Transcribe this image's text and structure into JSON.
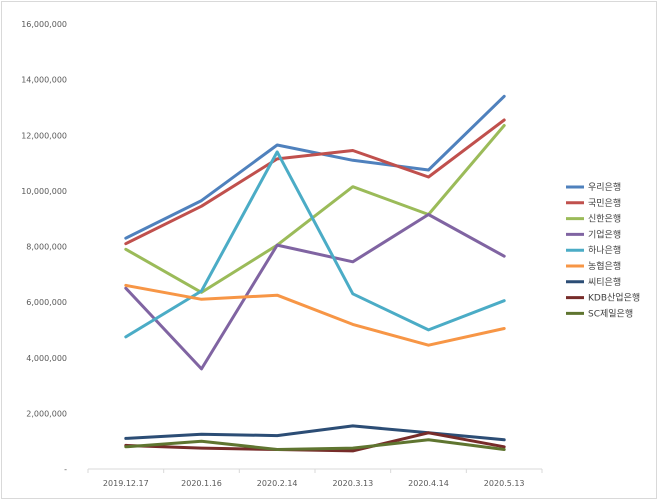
{
  "chart_data": {
    "type": "line",
    "title": "",
    "xlabel": "",
    "ylabel": "",
    "ylim": [
      0,
      16000000
    ],
    "yticks": [
      0,
      2000000,
      4000000,
      6000000,
      8000000,
      10000000,
      12000000,
      14000000,
      16000000
    ],
    "ytick_labels": [
      "-",
      "2,000,000",
      "4,000,000",
      "6,000,000",
      "8,000,000",
      "10,000,000",
      "12,000,000",
      "14,000,000",
      "16,000,000"
    ],
    "categories": [
      "2019.12.17",
      "2020.1.16",
      "2020.2.14",
      "2020.3.13",
      "2020.4.14",
      "2020.5.13"
    ],
    "grid": false,
    "legend_position": "right",
    "series": [
      {
        "name": "우리은행",
        "color": "#4f81bd",
        "values": [
          8300000,
          9650000,
          11650000,
          11100000,
          10750000,
          13400000
        ]
      },
      {
        "name": "국민은행",
        "color": "#c0504d",
        "values": [
          8100000,
          9450000,
          11150000,
          11450000,
          10500000,
          12550000
        ]
      },
      {
        "name": "신한은행",
        "color": "#9bbb59",
        "values": [
          7900000,
          6350000,
          8050000,
          10150000,
          9150000,
          12350000
        ]
      },
      {
        "name": "기업은행",
        "color": "#8064a2",
        "values": [
          6500000,
          3600000,
          8050000,
          7450000,
          9150000,
          7650000
        ]
      },
      {
        "name": "하나은행",
        "color": "#4bacc6",
        "values": [
          4750000,
          6400000,
          11400000,
          6300000,
          5000000,
          6050000
        ]
      },
      {
        "name": "농협은행",
        "color": "#f79646",
        "values": [
          6600000,
          6100000,
          6250000,
          5200000,
          4450000,
          5050000
        ]
      },
      {
        "name": "씨티은행",
        "color": "#2c4d75",
        "values": [
          1100000,
          1250000,
          1200000,
          1550000,
          1300000,
          1050000
        ]
      },
      {
        "name": "KDB산업은행",
        "color": "#772c2a",
        "values": [
          850000,
          750000,
          700000,
          650000,
          1300000,
          800000
        ]
      },
      {
        "name": "SC제일은행",
        "color": "#5f7530",
        "values": [
          800000,
          1000000,
          700000,
          750000,
          1050000,
          700000
        ]
      }
    ]
  }
}
